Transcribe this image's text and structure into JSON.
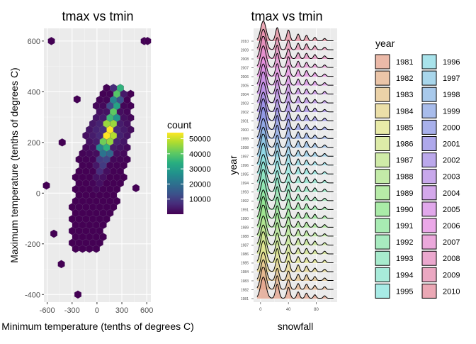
{
  "chart_data": [
    {
      "type": "heatmap",
      "subtype": "hexbin",
      "title": "tmax vs tmin",
      "xlabel": "Minimum temperature (tenths of degrees C)",
      "ylabel": "Maximum temperature (tenths of degrees C)",
      "xlim": [
        -640,
        650
      ],
      "ylim": [
        -430,
        650
      ],
      "xticks": [
        -600,
        -300,
        0,
        300,
        600
      ],
      "xtick_labels": [
        "-600",
        "-300",
        "0",
        "300",
        "600"
      ],
      "yticks": [
        -400,
        -200,
        0,
        200,
        400,
        600
      ],
      "ytick_labels": [
        "-400",
        "-200",
        "0",
        "200",
        "400",
        "600"
      ],
      "legend": {
        "title": "count",
        "breaks": [
          10000,
          20000,
          30000,
          40000,
          50000
        ],
        "labels": [
          "10000",
          "20000",
          "30000",
          "40000",
          "50000"
        ],
        "min": 1,
        "max": 54000,
        "placement": "right"
      },
      "density_axis": {
        "start": [
          0,
          20
        ],
        "end": [
          160,
          260
        ],
        "peak": [
          130,
          240
        ]
      },
      "outliers": [
        [
          -550,
          600
        ],
        [
          570,
          600
        ],
        [
          610,
          600
        ],
        [
          -610,
          30
        ],
        [
          -520,
          -160
        ],
        [
          -430,
          -280
        ],
        [
          -230,
          -400
        ],
        [
          -240,
          370
        ],
        [
          470,
          20
        ],
        [
          -420,
          200
        ]
      ],
      "grid": true
    },
    {
      "type": "ridgeline",
      "title": "tmax vs tmin",
      "xlabel": "snowfall",
      "ylabel": "year",
      "xlim": [
        -10,
        110
      ],
      "xticks": [
        0,
        40,
        80
      ],
      "xtick_labels": [
        "0",
        "40",
        "80"
      ],
      "years": [
        "1981",
        "1982",
        "1983",
        "1984",
        "1985",
        "1986",
        "1987",
        "1988",
        "1989",
        "1990",
        "1991",
        "1992",
        "1993",
        "1994",
        "1995",
        "1996",
        "1997",
        "1998",
        "1999",
        "2000",
        "2001",
        "2002",
        "2003",
        "2004",
        "2005",
        "2006",
        "2007",
        "2008",
        "2009",
        "2010"
      ],
      "peaks": [
        4,
        24,
        40,
        54,
        66,
        78,
        92
      ],
      "legend": {
        "title": "year",
        "columns": 2,
        "placement": "right"
      },
      "grid": true
    }
  ]
}
